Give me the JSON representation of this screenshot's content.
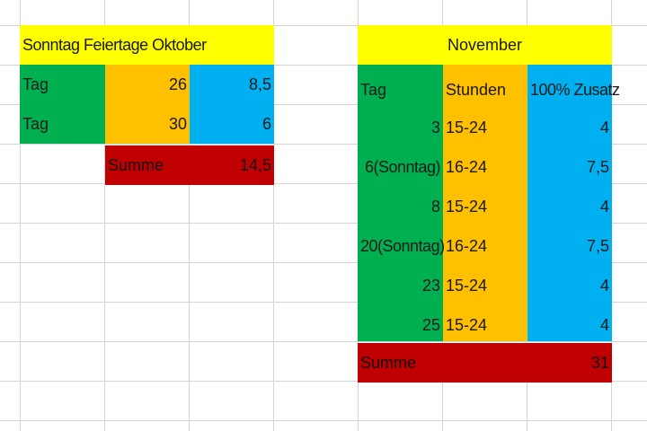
{
  "october": {
    "header": "Sonntag Feiertage Oktober",
    "rows": [
      {
        "label": "Tag",
        "day": "26",
        "value": "8,5"
      },
      {
        "label": "Tag",
        "day": "30",
        "value": "6"
      }
    ],
    "sum_label": "Summe",
    "sum_value": "14,5"
  },
  "november": {
    "header": "November",
    "col_tag": "Tag",
    "col_stunden": "Stunden",
    "col_zusatz": "100% Zusatz",
    "rows": [
      {
        "tag": "3",
        "stunden": "15-24",
        "zusatz": "4"
      },
      {
        "tag": "6(Sonntag)",
        "stunden": "16-24",
        "zusatz": "7,5"
      },
      {
        "tag": "8",
        "stunden": "15-24",
        "zusatz": "4"
      },
      {
        "tag": "20(Sonntag)",
        "stunden": "16-24",
        "zusatz": "7,5"
      },
      {
        "tag": "23",
        "stunden": "15-24",
        "zusatz": "4"
      },
      {
        "tag": "25",
        "stunden": "15-24",
        "zusatz": "4"
      }
    ],
    "sum_label": "Summe",
    "sum_value": "31"
  },
  "colors": {
    "yellow": "#ffff00",
    "green": "#00b050",
    "orange": "#ffc000",
    "blue": "#00b0f0",
    "red": "#c00000",
    "gridline": "#d4d4d4"
  }
}
